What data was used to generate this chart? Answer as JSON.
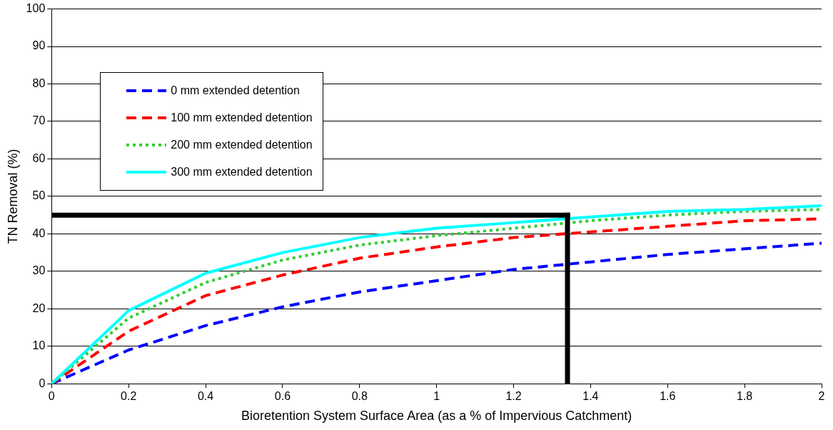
{
  "chart_data": {
    "type": "line",
    "xlabel": "Bioretention System Surface Area (as a % of Impervious Catchment)",
    "ylabel": "TN Removal (%)",
    "x": [
      0,
      0.2,
      0.4,
      0.6,
      0.8,
      1.0,
      1.2,
      1.4,
      1.6,
      1.8,
      2.0
    ],
    "xlim": [
      0,
      2
    ],
    "xticks": [
      0,
      0.2,
      0.4,
      0.6,
      0.8,
      1,
      1.2,
      1.4,
      1.6,
      1.8,
      2
    ],
    "ylim": [
      0,
      100
    ],
    "yticks": [
      0,
      10,
      20,
      30,
      40,
      50,
      60,
      70,
      80,
      90,
      100
    ],
    "grid": "y",
    "legend": "top left",
    "marker": "none",
    "series": [
      {
        "name": "0 mm extended detention",
        "color": "#0000ff",
        "line_style": "dashed",
        "values": [
          0,
          9,
          15.5,
          20.5,
          24.5,
          27.5,
          30.5,
          32.5,
          34.5,
          36,
          37.5
        ]
      },
      {
        "name": "100 mm extended detention",
        "color": "#ff0000",
        "line_style": "dashed",
        "values": [
          0,
          14,
          23.5,
          29,
          33.5,
          36.5,
          39,
          40.5,
          42,
          43.5,
          44
        ]
      },
      {
        "name": "200 mm extended detention",
        "color": "#33cc33",
        "line_style": "dotted",
        "values": [
          0,
          17.5,
          27,
          33,
          37,
          39.5,
          41.5,
          43.5,
          45,
          46,
          46.5
        ]
      },
      {
        "name": "300 mm extended detention",
        "color": "#00ffff",
        "line_style": "solid",
        "values": [
          0,
          19.5,
          29.5,
          35,
          39,
          41.5,
          43,
          44.5,
          46,
          46.5,
          47.5
        ]
      }
    ],
    "ref_lines": [
      {
        "axis": "y",
        "value": 45,
        "color": "#000000",
        "line_style": "solid"
      },
      {
        "axis": "x",
        "value": 1.34,
        "color": "#000000",
        "line_style": "solid"
      }
    ]
  }
}
